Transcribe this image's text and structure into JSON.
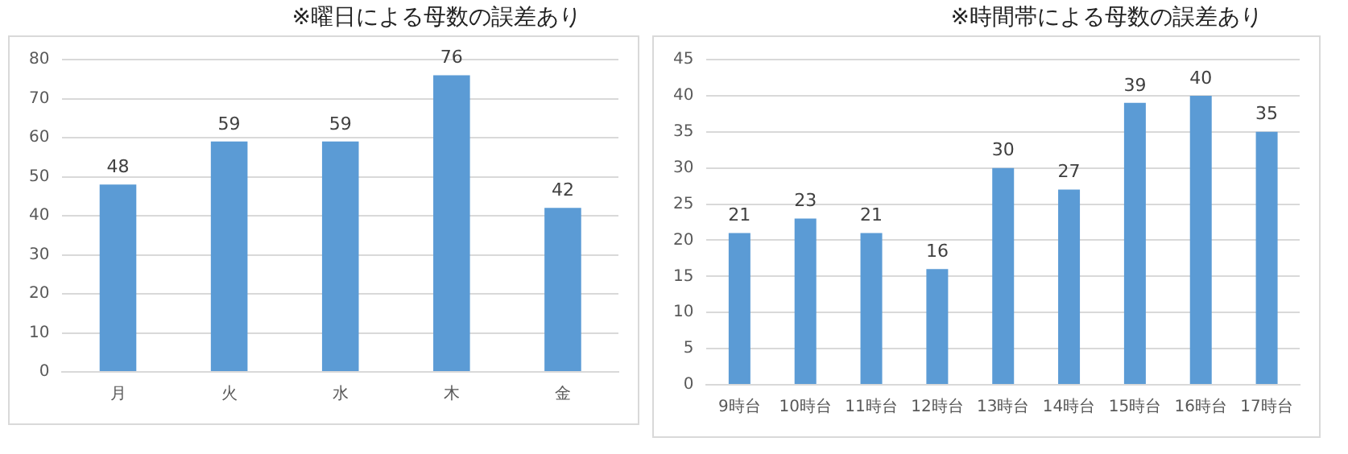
{
  "chart_data": [
    {
      "type": "bar",
      "title": "※曜日による母数の誤差あり",
      "categories": [
        "月",
        "火",
        "水",
        "木",
        "金"
      ],
      "values": [
        48,
        59,
        59,
        76,
        42
      ],
      "color": "#5b9bd5",
      "ylim": [
        0,
        80
      ],
      "yticks": [
        0,
        10,
        20,
        30,
        40,
        50,
        60,
        70,
        80
      ],
      "grid": "y",
      "legend": false,
      "data_labels": true
    },
    {
      "type": "bar",
      "title": "※時間帯による母数の誤差あり",
      "categories": [
        "9時台",
        "10時台",
        "11時台",
        "12時台",
        "13時台",
        "14時台",
        "15時台",
        "16時台",
        "17時台"
      ],
      "values": [
        21,
        23,
        21,
        16,
        30,
        27,
        39,
        40,
        35
      ],
      "color": "#5b9bd5",
      "ylim": [
        0,
        45
      ],
      "yticks": [
        0,
        5,
        10,
        15,
        20,
        25,
        30,
        35,
        40,
        45
      ],
      "grid": "y",
      "legend": false,
      "data_labels": true
    }
  ]
}
